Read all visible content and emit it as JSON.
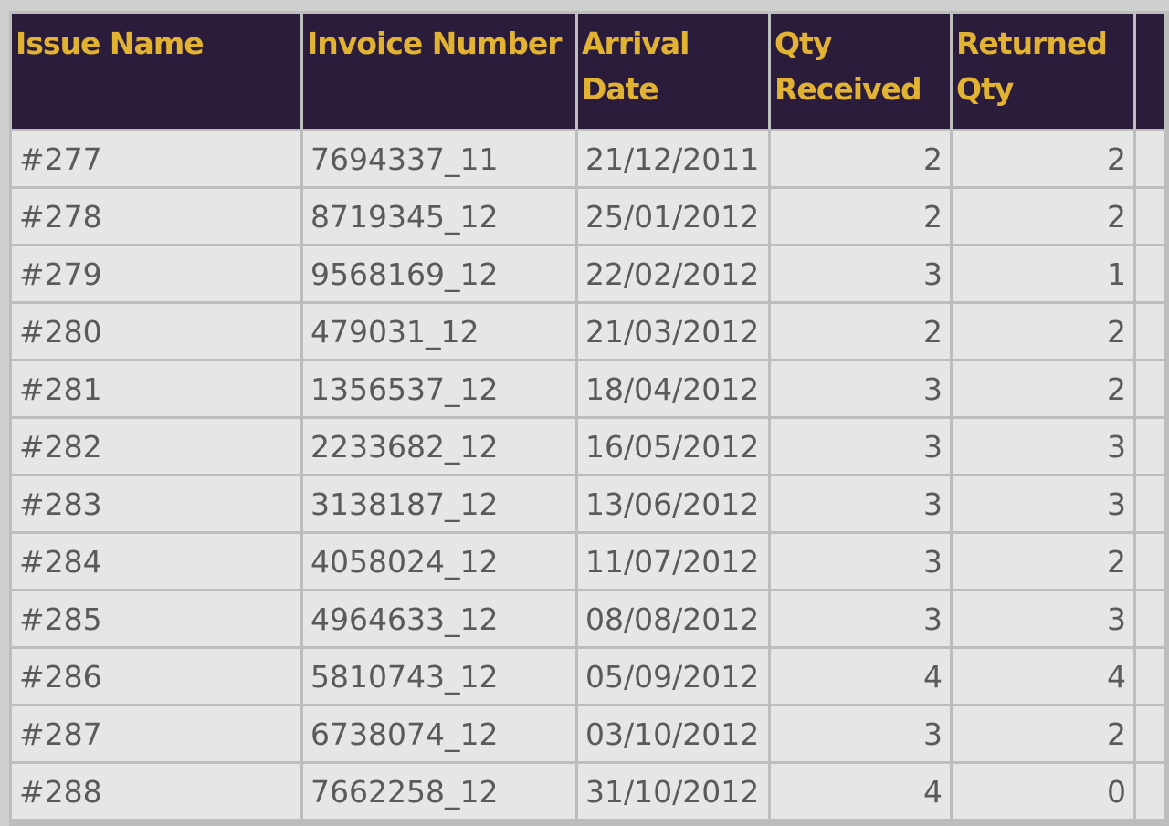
{
  "table": {
    "headers": [
      "Issue Name",
      "Invoice Number",
      "Arrival Date",
      "Qty Received",
      "Returned Qty"
    ],
    "rows": [
      [
        "#277",
        "7694337_11",
        "21/12/2011",
        2,
        2
      ],
      [
        "#278",
        "8719345_12",
        "25/01/2012",
        2,
        2
      ],
      [
        "#279",
        "9568169_12",
        "22/02/2012",
        3,
        1
      ],
      [
        "#280",
        "479031_12",
        "21/03/2012",
        2,
        2
      ],
      [
        "#281",
        "1356537_12",
        "18/04/2012",
        3,
        2
      ],
      [
        "#282",
        "2233682_12",
        "16/05/2012",
        3,
        3
      ],
      [
        "#283",
        "3138187_12",
        "13/06/2012",
        3,
        3
      ],
      [
        "#284",
        "4058024_12",
        "11/07/2012",
        3,
        2
      ],
      [
        "#285",
        "4964633_12",
        "08/08/2012",
        3,
        3
      ],
      [
        "#286",
        "5810743_12",
        "05/09/2012",
        4,
        4
      ],
      [
        "#287",
        "6738074_12",
        "03/10/2012",
        3,
        2
      ],
      [
        "#288",
        "7662258_12",
        "31/10/2012",
        4,
        0
      ]
    ]
  }
}
